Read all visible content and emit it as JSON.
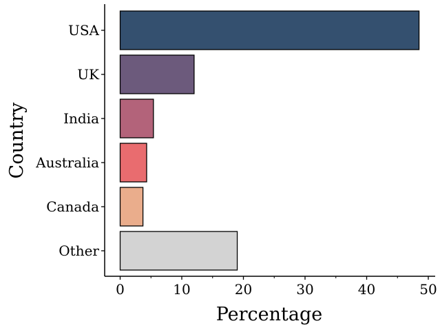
{
  "chart_data": {
    "type": "bar",
    "orientation": "horizontal",
    "categories": [
      "USA",
      "UK",
      "India",
      "Australia",
      "Canada",
      "Other"
    ],
    "values": [
      48.5,
      12.0,
      5.4,
      4.3,
      3.7,
      19.0
    ],
    "bar_colors": [
      "#34506f",
      "#6c5a7c",
      "#b3637a",
      "#e96c6f",
      "#eaad8c",
      "#d3d3d3"
    ],
    "xlabel": "Percentage",
    "ylabel": "Country",
    "xlim": [
      -2.5,
      51
    ],
    "xticks": [
      0,
      10,
      20,
      30,
      40,
      50
    ],
    "grid": false,
    "legend": "none"
  }
}
